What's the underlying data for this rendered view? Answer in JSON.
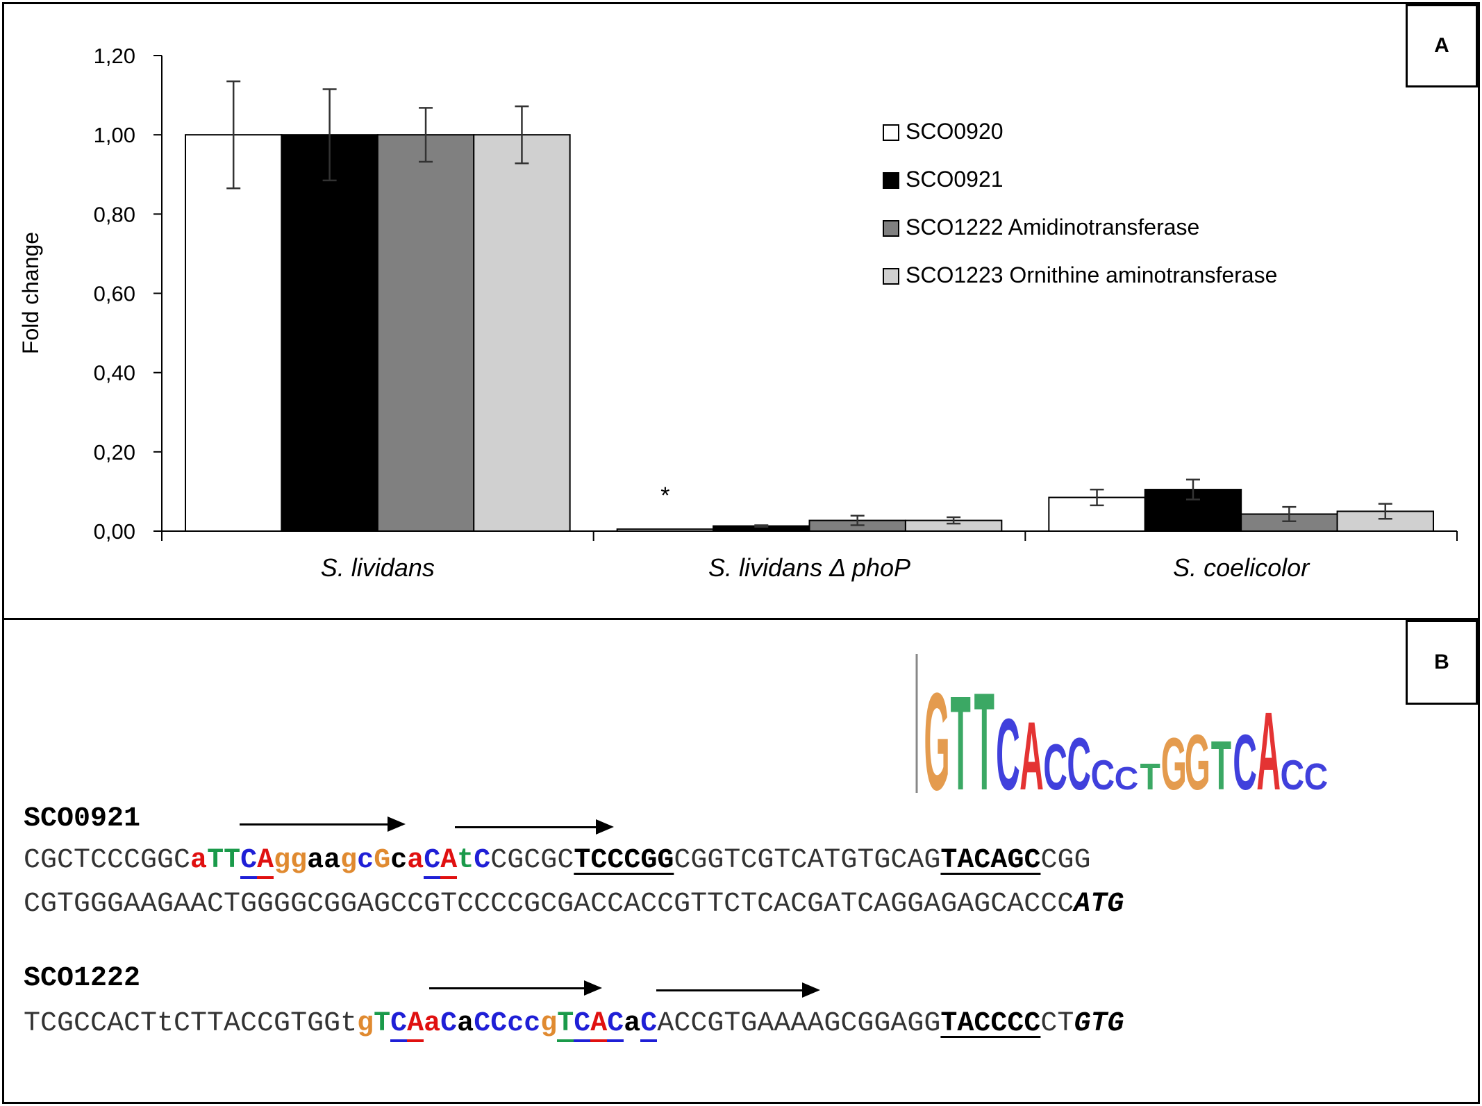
{
  "panel_a": {
    "label": "A"
  },
  "panel_b": {
    "label": "B"
  },
  "chart_data": {
    "type": "bar",
    "ylabel": "Fold change",
    "ylim": [
      0,
      1.2
    ],
    "yticks": [
      "0,00",
      "0,20",
      "0,40",
      "0,60",
      "0,80",
      "1,00",
      "1,20"
    ],
    "ytick_values": [
      0,
      0.2,
      0.4,
      0.6,
      0.8,
      1.0,
      1.2
    ],
    "categories": [
      "S. lividans",
      "S. lividans Δ phoP",
      "S. coelicolor"
    ],
    "legend_position": "top-right",
    "grid": false,
    "series": [
      {
        "name": "SCO0920",
        "color": "#ffffff",
        "values": [
          1.0,
          0.005,
          0.085
        ],
        "errors": [
          0.135,
          0.0,
          0.02
        ]
      },
      {
        "name": "SCO0921",
        "color": "#000000",
        "values": [
          1.0,
          0.013,
          0.105
        ],
        "errors": [
          0.115,
          0.002,
          0.025
        ]
      },
      {
        "name": "SCO1222 Amidinotransferase",
        "color": "#808080",
        "values": [
          1.0,
          0.027,
          0.043
        ],
        "errors": [
          0.068,
          0.012,
          0.018
        ]
      },
      {
        "name": "SCO1223 Ornithine aminotransferase",
        "color": "#d0d0d0",
        "values": [
          1.0,
          0.027,
          0.05
        ],
        "errors": [
          0.072,
          0.008,
          0.019
        ]
      }
    ],
    "annotations": [
      {
        "category": "S. lividans Δ phoP",
        "text": "*"
      }
    ]
  },
  "sequences": {
    "sco0921": {
      "name": "SCO0921",
      "line1": [
        {
          "t": "CGCTCCCGGC",
          "c": "#333333"
        },
        {
          "t": "a",
          "c": "#e01010",
          "b": true
        },
        {
          "t": "T",
          "c": "#1a9a4a",
          "b": true
        },
        {
          "t": "T",
          "c": "#1a9a4a",
          "b": true
        },
        {
          "t": "C",
          "c": "#1f1fd6",
          "b": true,
          "u": "blue"
        },
        {
          "t": "A",
          "c": "#e01010",
          "b": true,
          "u": "red"
        },
        {
          "t": "gg",
          "c": "#e08a30",
          "b": true
        },
        {
          "t": "aa",
          "c": "#000000",
          "b": true
        },
        {
          "t": "g",
          "c": "#e08a30",
          "b": true
        },
        {
          "t": "c",
          "c": "#1f1fd6",
          "b": true
        },
        {
          "t": "G",
          "c": "#e08a30",
          "b": true
        },
        {
          "t": "c",
          "c": "#000000",
          "b": true
        },
        {
          "t": "a",
          "c": "#e01010",
          "b": true
        },
        {
          "t": "C",
          "c": "#1f1fd6",
          "b": true,
          "u": "blue"
        },
        {
          "t": "A",
          "c": "#e01010",
          "b": true,
          "u": "red"
        },
        {
          "t": "t",
          "c": "#1a9a4a",
          "b": true
        },
        {
          "t": "C",
          "c": "#1f1fd6",
          "b": true
        },
        {
          "t": "CGCGC",
          "c": "#333333"
        },
        {
          "t": "TCCCGG",
          "c": "#000000",
          "b": true,
          "u": "black"
        },
        {
          "t": "CGGTCGTCATGTGCAG",
          "c": "#333333"
        },
        {
          "t": "TACAGC",
          "c": "#000000",
          "b": true,
          "u": "black"
        },
        {
          "t": "CGG",
          "c": "#333333"
        }
      ],
      "line2": [
        {
          "t": "CGTGGGAAGAACTGGGGCGGAGCCGTCCCCGCGACCACCGTTCTCACGATCAGGAGAGCACCC",
          "c": "#333333"
        },
        {
          "t": "ATG",
          "c": "#000000",
          "b": true,
          "i": true
        }
      ]
    },
    "sco1222": {
      "name": "SCO1222",
      "line1": [
        {
          "t": "TCGCCACTtCTTACCGTGGt",
          "c": "#333333"
        },
        {
          "t": "g",
          "c": "#e08a30",
          "b": true
        },
        {
          "t": "T",
          "c": "#1a9a4a",
          "b": true
        },
        {
          "t": "C",
          "c": "#1f1fd6",
          "b": true,
          "u": "blue"
        },
        {
          "t": "A",
          "c": "#e01010",
          "b": true,
          "u": "red"
        },
        {
          "t": "a",
          "c": "#e01010",
          "b": true
        },
        {
          "t": "C",
          "c": "#1f1fd6",
          "b": true
        },
        {
          "t": "a",
          "c": "#000000",
          "b": true
        },
        {
          "t": "CCcc",
          "c": "#1f1fd6",
          "b": true
        },
        {
          "t": "g",
          "c": "#e08a30",
          "b": true
        },
        {
          "t": "T",
          "c": "#1a9a4a",
          "b": true,
          "u": "green"
        },
        {
          "t": "C",
          "c": "#1f1fd6",
          "b": true,
          "u": "blue"
        },
        {
          "t": "A",
          "c": "#e01010",
          "b": true,
          "u": "red"
        },
        {
          "t": "C",
          "c": "#1f1fd6",
          "b": true,
          "u": "blue"
        },
        {
          "t": "a",
          "c": "#000000",
          "b": true
        },
        {
          "t": "C",
          "c": "#1f1fd6",
          "b": true,
          "u": "blue"
        },
        {
          "t": "ACCGTGAAAAGCGGAGG",
          "c": "#333333"
        },
        {
          "t": "TACCCC",
          "c": "#000000",
          "b": true,
          "u": "black"
        },
        {
          "t": "CT",
          "c": "#333333"
        },
        {
          "t": "GTG",
          "c": "#000000",
          "b": true,
          "i": true
        }
      ]
    }
  },
  "logo": {
    "top_row": [
      {
        "t": "G",
        "c": "#e08a30"
      },
      {
        "t": "T",
        "c": "#1a9a4a"
      },
      {
        "t": "T",
        "c": "#1a9a4a"
      },
      {
        "t": "C",
        "c": "#1f1fd6"
      },
      {
        "t": "A",
        "c": "#e01010"
      },
      {
        "t": "C",
        "c": "#1f1fd6"
      },
      {
        "t": "C",
        "c": "#1f1fd6"
      },
      {
        "t": "C",
        "c": "#1f1fd6"
      },
      {
        "t": "C",
        "c": "#1f1fd6"
      },
      {
        "t": "T",
        "c": "#1a9a4a"
      },
      {
        "t": "G",
        "c": "#e08a30"
      },
      {
        "t": "G",
        "c": "#e08a30"
      },
      {
        "t": "T",
        "c": "#1a9a4a"
      },
      {
        "t": "C",
        "c": "#1f1fd6"
      },
      {
        "t": "A",
        "c": "#e01010"
      },
      {
        "t": "C",
        "c": "#1f1fd6"
      },
      {
        "t": "C",
        "c": "#1f1fd6"
      }
    ]
  }
}
